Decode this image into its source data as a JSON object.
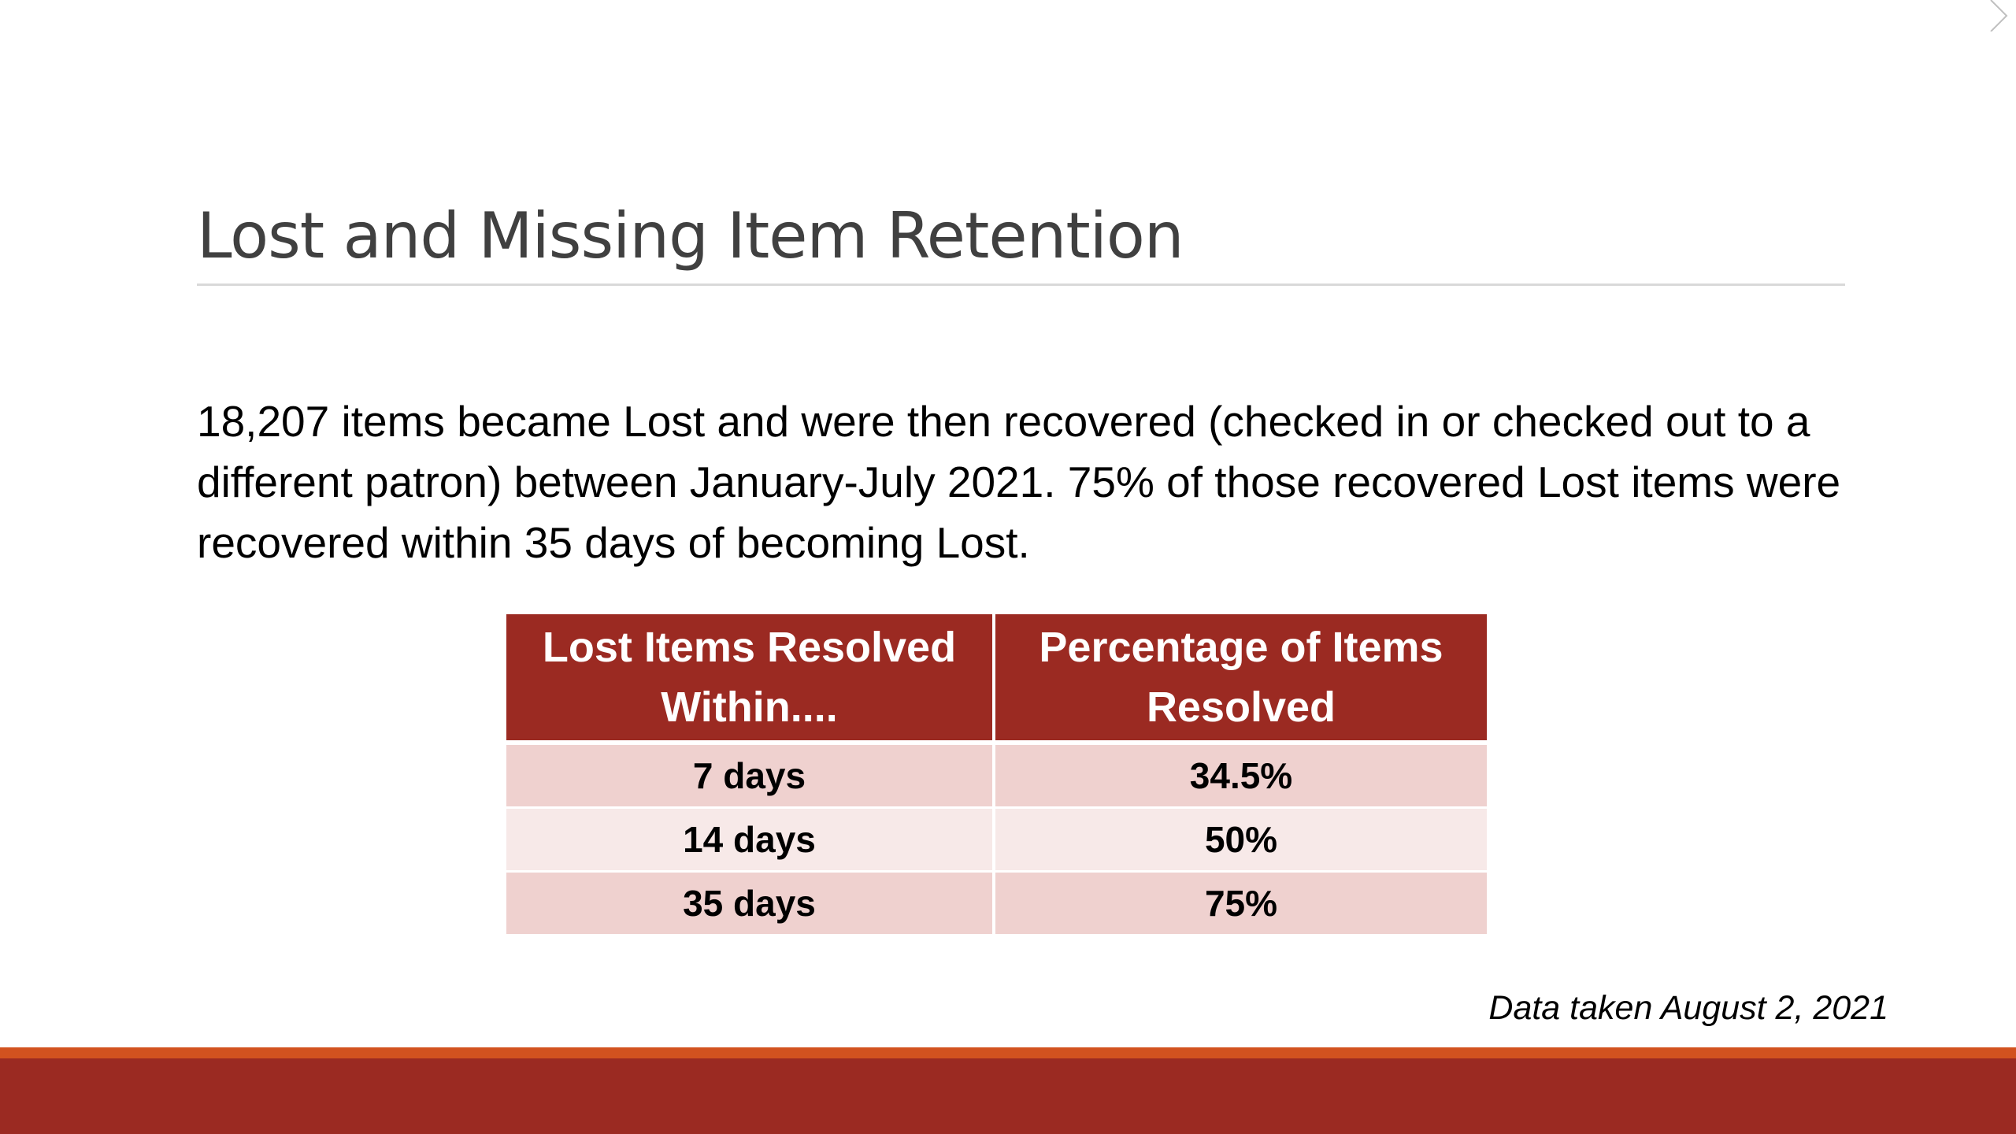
{
  "slide": {
    "title": "Lost and Missing Item Retention",
    "body": "18,207 items became Lost and were then recovered (checked in or checked out to a different patron) between January-July 2021. 75% of those recovered Lost items were recovered within 35 days of becoming Lost.",
    "table": {
      "headers": [
        "Lost Items Resolved Within....",
        "Percentage of Items Resolved"
      ],
      "rows": [
        {
          "period": "7 days",
          "percentage": "34.5%"
        },
        {
          "period": "14 days",
          "percentage": "50%"
        },
        {
          "period": "35 days",
          "percentage": "75%"
        }
      ]
    },
    "footnote": "Data taken August 2, 2021"
  },
  "theme": {
    "accent_dark_red": "#9b2a22",
    "accent_orange": "#d2521f",
    "row_shade_dark": "#efd1cf",
    "row_shade_light": "#f7e9e8",
    "title_color": "#404040",
    "rule_color": "#d9d9d9"
  }
}
